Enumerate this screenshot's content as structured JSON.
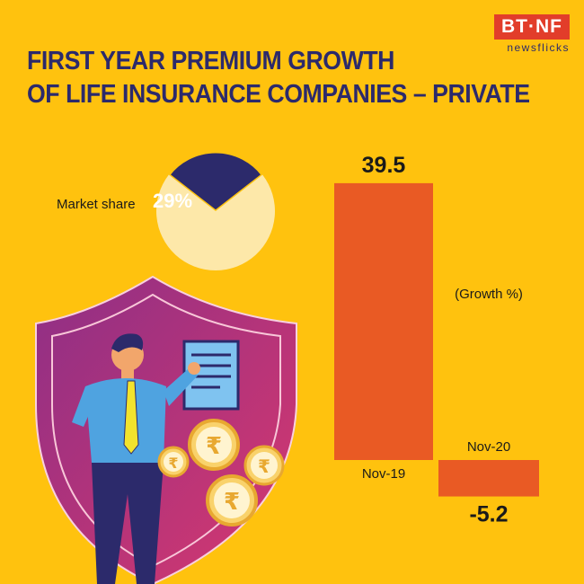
{
  "title": {
    "line1": "FIRST YEAR PREMIUM GROWTH",
    "line2": "OF LIFE INSURANCE COMPANIES – PRIVATE"
  },
  "logo": {
    "brand": "BT·NF",
    "sub": "newsflicks"
  },
  "market_share": {
    "label": "Market share",
    "value_label": "29%",
    "value": 29
  },
  "unit_label": "(Growth %)",
  "colors": {
    "background": "#FFC20E",
    "title": "#2C2A6B",
    "bar": "#E95A24",
    "pie_share": "#2C2A6B",
    "pie_rest": "#FDE8A9",
    "shield": "#C2347A"
  },
  "icons": [
    "rupee-coin-icon",
    "document-icon",
    "shield-icon"
  ],
  "chart_data": [
    {
      "type": "pie",
      "title": "",
      "labels": [
        "Market share",
        ""
      ],
      "values": [
        29,
        71
      ],
      "value_labels": [
        "29%",
        ""
      ]
    },
    {
      "type": "bar",
      "title": "FIRST YEAR PREMIUM GROWTH OF LIFE INSURANCE COMPANIES – PRIVATE",
      "ylabel": "(Growth %)",
      "categories": [
        "Nov-19",
        "Nov-20"
      ],
      "values": [
        39.5,
        -5.2
      ],
      "value_labels": [
        "39.5",
        "-5.2"
      ],
      "ylim": [
        -5.2,
        39.5
      ],
      "grid": false
    }
  ]
}
